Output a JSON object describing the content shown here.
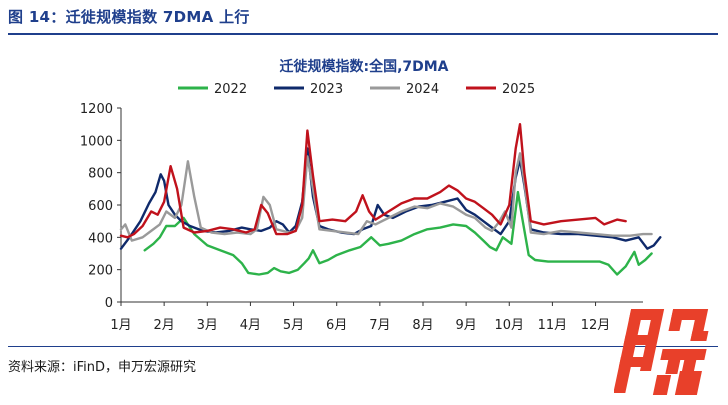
{
  "figure_title": "图 14：迁徙规模指数 7DMA 上行",
  "source_note": "资料来源：iFinD，申万宏源研究",
  "watermark_text": "股",
  "colors": {
    "brand": "#1f3f8c",
    "watermark": "#e8402a"
  },
  "chart_data": {
    "type": "line",
    "title": "迁徙规模指数:全国,7DMA",
    "xlabel": "",
    "ylabel": "",
    "ylim": [
      0,
      1200
    ],
    "xlim": [
      1,
      13.1
    ],
    "yticks": [
      0,
      200,
      400,
      600,
      800,
      1000,
      1200
    ],
    "categories": [
      "1月",
      "2月",
      "3月",
      "4月",
      "5月",
      "6月",
      "7月",
      "8月",
      "9月",
      "10月",
      "11月",
      "12月"
    ],
    "legend_position": "top",
    "series": [
      {
        "name": "2022",
        "color": "#2db34a",
        "points": [
          [
            1.55,
            320
          ],
          [
            1.75,
            360
          ],
          [
            1.9,
            400
          ],
          [
            2.05,
            470
          ],
          [
            2.25,
            470
          ],
          [
            2.45,
            520
          ],
          [
            2.6,
            460
          ],
          [
            2.7,
            420
          ],
          [
            3.0,
            350
          ],
          [
            3.3,
            320
          ],
          [
            3.6,
            290
          ],
          [
            3.8,
            240
          ],
          [
            3.95,
            180
          ],
          [
            4.2,
            170
          ],
          [
            4.4,
            180
          ],
          [
            4.55,
            210
          ],
          [
            4.7,
            190
          ],
          [
            4.9,
            180
          ],
          [
            5.1,
            200
          ],
          [
            5.25,
            240
          ],
          [
            5.35,
            270
          ],
          [
            5.45,
            320
          ],
          [
            5.6,
            240
          ],
          [
            5.8,
            260
          ],
          [
            6.0,
            290
          ],
          [
            6.3,
            320
          ],
          [
            6.55,
            340
          ],
          [
            6.8,
            400
          ],
          [
            7.0,
            350
          ],
          [
            7.2,
            360
          ],
          [
            7.5,
            380
          ],
          [
            7.8,
            420
          ],
          [
            8.1,
            450
          ],
          [
            8.4,
            460
          ],
          [
            8.7,
            480
          ],
          [
            9.0,
            470
          ],
          [
            9.2,
            430
          ],
          [
            9.4,
            380
          ],
          [
            9.55,
            340
          ],
          [
            9.7,
            320
          ],
          [
            9.85,
            400
          ],
          [
            10.05,
            360
          ],
          [
            10.2,
            680
          ],
          [
            10.3,
            520
          ],
          [
            10.45,
            290
          ],
          [
            10.6,
            260
          ],
          [
            10.9,
            250
          ],
          [
            11.3,
            250
          ],
          [
            11.7,
            250
          ],
          [
            12.1,
            250
          ],
          [
            12.3,
            230
          ],
          [
            12.5,
            170
          ],
          [
            12.7,
            220
          ],
          [
            12.9,
            310
          ],
          [
            13.0,
            230
          ],
          [
            13.15,
            260
          ],
          [
            13.3,
            300
          ]
        ]
      },
      {
        "name": "2023",
        "color": "#0f2a6b",
        "points": [
          [
            1.0,
            330
          ],
          [
            1.2,
            400
          ],
          [
            1.45,
            500
          ],
          [
            1.65,
            610
          ],
          [
            1.8,
            680
          ],
          [
            1.92,
            790
          ],
          [
            2.0,
            750
          ],
          [
            2.1,
            600
          ],
          [
            2.25,
            540
          ],
          [
            2.4,
            500
          ],
          [
            2.6,
            470
          ],
          [
            2.9,
            440
          ],
          [
            3.2,
            430
          ],
          [
            3.5,
            440
          ],
          [
            3.8,
            460
          ],
          [
            4.0,
            450
          ],
          [
            4.25,
            440
          ],
          [
            4.45,
            460
          ],
          [
            4.6,
            500
          ],
          [
            4.75,
            480
          ],
          [
            4.9,
            430
          ],
          [
            5.05,
            470
          ],
          [
            5.2,
            620
          ],
          [
            5.32,
            950
          ],
          [
            5.45,
            650
          ],
          [
            5.6,
            470
          ],
          [
            5.8,
            450
          ],
          [
            6.1,
            430
          ],
          [
            6.4,
            420
          ],
          [
            6.6,
            450
          ],
          [
            6.8,
            470
          ],
          [
            6.95,
            600
          ],
          [
            7.1,
            540
          ],
          [
            7.3,
            520
          ],
          [
            7.6,
            560
          ],
          [
            7.9,
            590
          ],
          [
            8.2,
            600
          ],
          [
            8.5,
            620
          ],
          [
            8.8,
            640
          ],
          [
            9.0,
            570
          ],
          [
            9.2,
            540
          ],
          [
            9.4,
            500
          ],
          [
            9.6,
            460
          ],
          [
            9.8,
            420
          ],
          [
            10.0,
            500
          ],
          [
            10.15,
            770
          ],
          [
            10.25,
            880
          ],
          [
            10.35,
            720
          ],
          [
            10.5,
            450
          ],
          [
            10.8,
            430
          ],
          [
            11.2,
            420
          ],
          [
            11.6,
            420
          ],
          [
            12.0,
            410
          ],
          [
            12.4,
            400
          ],
          [
            12.7,
            380
          ],
          [
            13.0,
            400
          ],
          [
            13.2,
            330
          ],
          [
            13.35,
            350
          ],
          [
            13.5,
            400
          ]
        ]
      },
      {
        "name": "2024",
        "color": "#9a9a9a",
        "points": [
          [
            1.0,
            450
          ],
          [
            1.1,
            480
          ],
          [
            1.25,
            380
          ],
          [
            1.5,
            400
          ],
          [
            1.7,
            440
          ],
          [
            1.9,
            480
          ],
          [
            2.05,
            560
          ],
          [
            2.25,
            520
          ],
          [
            2.4,
            600
          ],
          [
            2.55,
            870
          ],
          [
            2.7,
            650
          ],
          [
            2.85,
            460
          ],
          [
            3.1,
            430
          ],
          [
            3.4,
            420
          ],
          [
            3.7,
            430
          ],
          [
            4.0,
            420
          ],
          [
            4.15,
            450
          ],
          [
            4.3,
            650
          ],
          [
            4.45,
            600
          ],
          [
            4.6,
            450
          ],
          [
            4.9,
            430
          ],
          [
            5.05,
            440
          ],
          [
            5.2,
            520
          ],
          [
            5.32,
            900
          ],
          [
            5.45,
            700
          ],
          [
            5.6,
            450
          ],
          [
            5.9,
            440
          ],
          [
            6.2,
            430
          ],
          [
            6.5,
            420
          ],
          [
            6.7,
            500
          ],
          [
            6.9,
            480
          ],
          [
            7.2,
            520
          ],
          [
            7.5,
            560
          ],
          [
            7.8,
            590
          ],
          [
            8.1,
            580
          ],
          [
            8.4,
            610
          ],
          [
            8.7,
            590
          ],
          [
            9.0,
            540
          ],
          [
            9.2,
            520
          ],
          [
            9.45,
            460
          ],
          [
            9.6,
            440
          ],
          [
            9.75,
            490
          ],
          [
            9.9,
            560
          ],
          [
            10.05,
            460
          ],
          [
            10.15,
            800
          ],
          [
            10.25,
            920
          ],
          [
            10.35,
            740
          ],
          [
            10.5,
            430
          ],
          [
            10.8,
            420
          ],
          [
            11.2,
            440
          ],
          [
            11.6,
            430
          ],
          [
            12.0,
            420
          ],
          [
            12.4,
            410
          ],
          [
            12.8,
            410
          ],
          [
            13.1,
            420
          ],
          [
            13.3,
            420
          ]
        ]
      },
      {
        "name": "2025",
        "color": "#c0121c",
        "points": [
          [
            1.0,
            410
          ],
          [
            1.15,
            400
          ],
          [
            1.3,
            420
          ],
          [
            1.5,
            470
          ],
          [
            1.7,
            560
          ],
          [
            1.85,
            540
          ],
          [
            2.0,
            620
          ],
          [
            2.15,
            840
          ],
          [
            2.3,
            700
          ],
          [
            2.45,
            460
          ],
          [
            2.7,
            430
          ],
          [
            3.0,
            440
          ],
          [
            3.3,
            460
          ],
          [
            3.6,
            450
          ],
          [
            3.9,
            430
          ],
          [
            4.1,
            450
          ],
          [
            4.25,
            600
          ],
          [
            4.4,
            550
          ],
          [
            4.6,
            420
          ],
          [
            4.85,
            420
          ],
          [
            5.05,
            440
          ],
          [
            5.2,
            600
          ],
          [
            5.32,
            1060
          ],
          [
            5.45,
            780
          ],
          [
            5.6,
            500
          ],
          [
            5.9,
            510
          ],
          [
            6.2,
            500
          ],
          [
            6.45,
            560
          ],
          [
            6.6,
            660
          ],
          [
            6.75,
            560
          ],
          [
            6.9,
            510
          ],
          [
            7.2,
            560
          ],
          [
            7.5,
            610
          ],
          [
            7.8,
            640
          ],
          [
            8.1,
            640
          ],
          [
            8.4,
            680
          ],
          [
            8.6,
            720
          ],
          [
            8.8,
            690
          ],
          [
            9.0,
            640
          ],
          [
            9.2,
            620
          ],
          [
            9.4,
            580
          ],
          [
            9.6,
            540
          ],
          [
            9.8,
            480
          ],
          [
            10.0,
            600
          ],
          [
            10.15,
            950
          ],
          [
            10.25,
            1100
          ],
          [
            10.35,
            800
          ],
          [
            10.5,
            500
          ],
          [
            10.8,
            480
          ],
          [
            11.2,
            500
          ],
          [
            11.6,
            510
          ],
          [
            12.0,
            520
          ],
          [
            12.2,
            480
          ],
          [
            12.5,
            510
          ],
          [
            12.7,
            500
          ]
        ]
      }
    ]
  }
}
